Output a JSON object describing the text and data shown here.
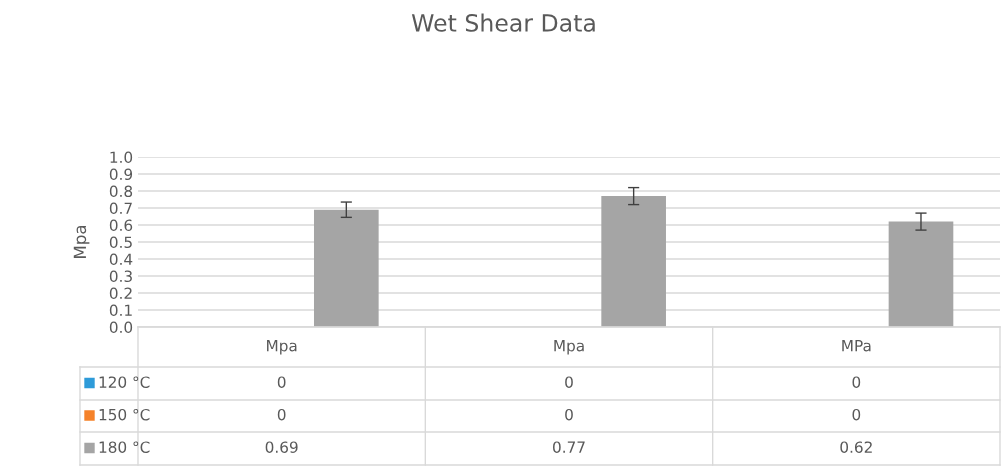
{
  "chart_data": {
    "type": "bar",
    "title": "Wet Shear Data",
    "ylabel": "Mpa",
    "categories": [
      "Mpa",
      "Mpa",
      "MPa"
    ],
    "series": [
      {
        "name": "120 °C",
        "color": "#2e9bd9",
        "values": [
          0,
          0,
          0
        ]
      },
      {
        "name": "150 °C",
        "color": "#f5822a",
        "values": [
          0,
          0,
          0
        ]
      },
      {
        "name": "180 °C",
        "color": "#a5a5a5",
        "values": [
          0.69,
          0.77,
          0.62
        ],
        "errors": [
          0.045,
          0.05,
          0.05
        ]
      }
    ],
    "ylim": [
      0,
      1.0
    ],
    "yticks": [
      {
        "value": 0,
        "label": "0.0"
      },
      {
        "value": 0.1,
        "label": "0.1"
      },
      {
        "value": 0.2,
        "label": "0.2"
      },
      {
        "value": 0.3,
        "label": "0.3"
      },
      {
        "value": 0.4,
        "label": "0.4"
      },
      {
        "value": 0.5,
        "label": "0.5"
      },
      {
        "value": 0.6,
        "label": "0.6"
      },
      {
        "value": 0.7,
        "label": "0.7"
      },
      {
        "value": 0.8,
        "label": "0.8"
      },
      {
        "value": 0.9,
        "label": "0.9"
      },
      {
        "value": 1.0,
        "label": "1.0"
      }
    ],
    "grid": "y",
    "data_labels": true
  }
}
